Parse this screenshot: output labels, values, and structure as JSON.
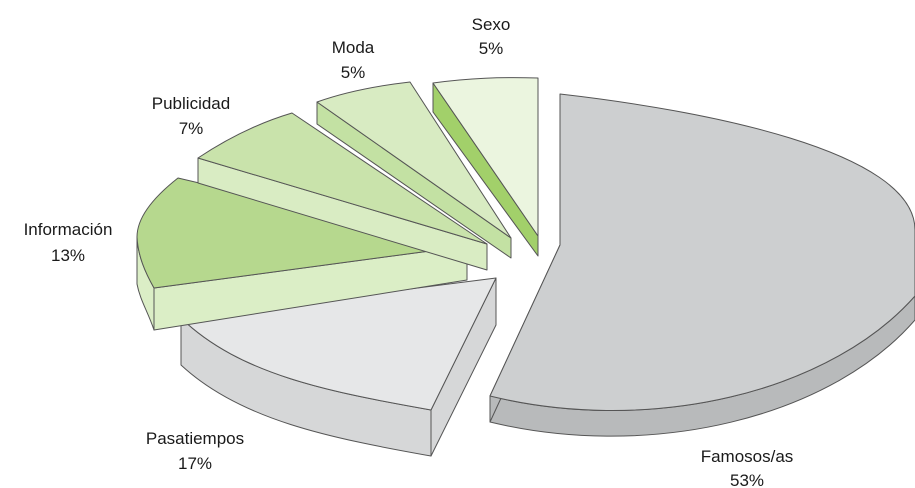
{
  "chart_data": {
    "type": "pie",
    "title": "",
    "style": "3d-exploded",
    "slices": [
      {
        "label": "Famosos/as",
        "value": 53,
        "value_label": "53%",
        "color": "#cdcfd0",
        "side_color": "#b8babb"
      },
      {
        "label": "Pasatiempos",
        "value": 17,
        "value_label": "17%",
        "color": "#e6e7e8",
        "side_color": "#d6d7d8"
      },
      {
        "label": "Información",
        "value": 13,
        "value_label": "13%",
        "color": "#b6d88e",
        "side_color": "#dbeec6"
      },
      {
        "label": "Publicidad",
        "value": 7,
        "value_label": "7%",
        "color": "#c9e3ab",
        "side_color": "#d9ecc3"
      },
      {
        "label": "Moda",
        "value": 5,
        "value_label": "5%",
        "color": "#d8ebc2",
        "side_color": "#c3e1a3"
      },
      {
        "label": "Sexo",
        "value": 5,
        "value_label": "5%",
        "color": "#ebf5df",
        "side_color": "#a2d06a"
      }
    ]
  }
}
